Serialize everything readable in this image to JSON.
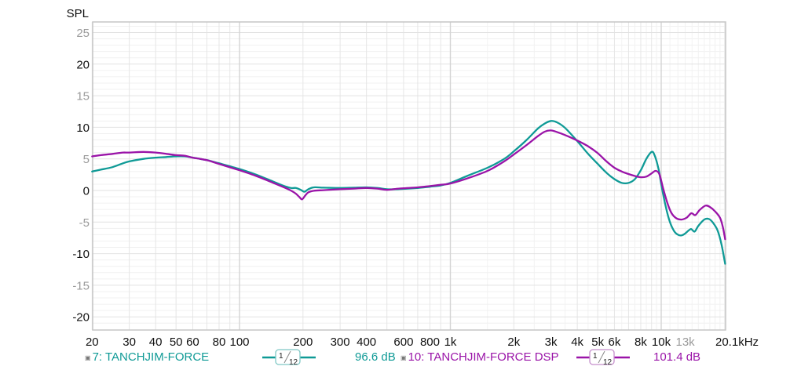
{
  "chart_data": {
    "type": "line",
    "title": "",
    "ylabel": "SPL",
    "xlabel": "Hz",
    "xscale": "log",
    "xlim": [
      20,
      20100
    ],
    "ylim": [
      -22,
      26.5
    ],
    "grid": true,
    "y_ticks": [
      {
        "value": 25,
        "label": "25",
        "emphasis": false
      },
      {
        "value": 20,
        "label": "20",
        "emphasis": true
      },
      {
        "value": 15,
        "label": "15",
        "emphasis": false
      },
      {
        "value": 10,
        "label": "10",
        "emphasis": true
      },
      {
        "value": 5,
        "label": "5",
        "emphasis": false
      },
      {
        "value": 0,
        "label": "0",
        "emphasis": true
      },
      {
        "value": -5,
        "label": "-5",
        "emphasis": false
      },
      {
        "value": -10,
        "label": "-10",
        "emphasis": true
      },
      {
        "value": -15,
        "label": "-15",
        "emphasis": false
      },
      {
        "value": -20,
        "label": "-20",
        "emphasis": true
      }
    ],
    "x_ticks": [
      {
        "value": 20,
        "label": "20",
        "emphasis": true
      },
      {
        "value": 30,
        "label": "30",
        "emphasis": true
      },
      {
        "value": 40,
        "label": "40",
        "emphasis": true
      },
      {
        "value": 50,
        "label": "50",
        "emphasis": true
      },
      {
        "value": 60,
        "label": "60",
        "emphasis": true
      },
      {
        "value": 80,
        "label": "80",
        "emphasis": true
      },
      {
        "value": 100,
        "label": "100",
        "emphasis": true
      },
      {
        "value": 200,
        "label": "200",
        "emphasis": true
      },
      {
        "value": 300,
        "label": "300",
        "emphasis": true
      },
      {
        "value": 400,
        "label": "400",
        "emphasis": true
      },
      {
        "value": 600,
        "label": "600",
        "emphasis": true
      },
      {
        "value": 800,
        "label": "800",
        "emphasis": true
      },
      {
        "value": 1000,
        "label": "1k",
        "emphasis": true
      },
      {
        "value": 2000,
        "label": "2k",
        "emphasis": true
      },
      {
        "value": 3000,
        "label": "3k",
        "emphasis": true
      },
      {
        "value": 4000,
        "label": "4k",
        "emphasis": true
      },
      {
        "value": 5000,
        "label": "5k",
        "emphasis": true
      },
      {
        "value": 6000,
        "label": "6k",
        "emphasis": true
      },
      {
        "value": 8000,
        "label": "8k",
        "emphasis": true
      },
      {
        "value": 10000,
        "label": "10k",
        "emphasis": true
      },
      {
        "value": 13000,
        "label": "13k",
        "emphasis": false
      },
      {
        "value": 20100,
        "label": "20.1kHz",
        "emphasis": true
      }
    ],
    "series": [
      {
        "name": "7: TANCHJIM-FORCE",
        "color": "#0f9a96",
        "smoothing": "1/12",
        "level": "96.6 dB",
        "points": [
          [
            20,
            3.0
          ],
          [
            22,
            3.3
          ],
          [
            25,
            3.7
          ],
          [
            28,
            4.3
          ],
          [
            30,
            4.6
          ],
          [
            35,
            5.0
          ],
          [
            40,
            5.2
          ],
          [
            45,
            5.3
          ],
          [
            50,
            5.4
          ],
          [
            55,
            5.4
          ],
          [
            60,
            5.2
          ],
          [
            70,
            4.8
          ],
          [
            80,
            4.3
          ],
          [
            100,
            3.4
          ],
          [
            120,
            2.5
          ],
          [
            140,
            1.6
          ],
          [
            160,
            0.8
          ],
          [
            175,
            0.4
          ],
          [
            185,
            0.4
          ],
          [
            195,
            0.1
          ],
          [
            203,
            -0.2
          ],
          [
            212,
            0.2
          ],
          [
            225,
            0.5
          ],
          [
            250,
            0.45
          ],
          [
            300,
            0.4
          ],
          [
            350,
            0.45
          ],
          [
            400,
            0.5
          ],
          [
            450,
            0.4
          ],
          [
            500,
            0.2
          ],
          [
            550,
            0.2
          ],
          [
            600,
            0.25
          ],
          [
            700,
            0.4
          ],
          [
            800,
            0.6
          ],
          [
            900,
            0.8
          ],
          [
            1000,
            1.2
          ],
          [
            1200,
            2.3
          ],
          [
            1500,
            3.6
          ],
          [
            1800,
            5.0
          ],
          [
            2000,
            6.2
          ],
          [
            2300,
            8.0
          ],
          [
            2600,
            9.8
          ],
          [
            2800,
            10.6
          ],
          [
            3000,
            11.0
          ],
          [
            3200,
            10.8
          ],
          [
            3500,
            9.9
          ],
          [
            4000,
            7.8
          ],
          [
            4500,
            5.8
          ],
          [
            5000,
            4.2
          ],
          [
            5500,
            2.8
          ],
          [
            6000,
            1.8
          ],
          [
            6500,
            1.2
          ],
          [
            7000,
            1.2
          ],
          [
            7500,
            1.8
          ],
          [
            8000,
            3.2
          ],
          [
            8500,
            5.0
          ],
          [
            9000,
            6.1
          ],
          [
            9300,
            5.6
          ],
          [
            9700,
            3.5
          ],
          [
            10000,
            1.0
          ],
          [
            10500,
            -2.5
          ],
          [
            11000,
            -5.0
          ],
          [
            11500,
            -6.4
          ],
          [
            12000,
            -7.0
          ],
          [
            12500,
            -7.1
          ],
          [
            13000,
            -6.8
          ],
          [
            13800,
            -6.1
          ],
          [
            14400,
            -6.5
          ],
          [
            15000,
            -5.6
          ],
          [
            16000,
            -4.6
          ],
          [
            16800,
            -4.5
          ],
          [
            17500,
            -5.0
          ],
          [
            18500,
            -6.3
          ],
          [
            19300,
            -8.5
          ],
          [
            20100,
            -11.6
          ]
        ]
      },
      {
        "name": "10: TANCHJIM-FORCE DSP",
        "color": "#9a14a8",
        "smoothing": "1/12",
        "level": "101.4 dB",
        "points": [
          [
            20,
            5.4
          ],
          [
            22,
            5.6
          ],
          [
            25,
            5.8
          ],
          [
            28,
            6.0
          ],
          [
            30,
            6.0
          ],
          [
            35,
            6.1
          ],
          [
            40,
            6.0
          ],
          [
            45,
            5.8
          ],
          [
            50,
            5.6
          ],
          [
            55,
            5.5
          ],
          [
            60,
            5.2
          ],
          [
            70,
            4.8
          ],
          [
            80,
            4.2
          ],
          [
            100,
            3.2
          ],
          [
            120,
            2.3
          ],
          [
            140,
            1.4
          ],
          [
            160,
            0.6
          ],
          [
            175,
            0.0
          ],
          [
            185,
            -0.5
          ],
          [
            193,
            -1.1
          ],
          [
            198,
            -1.4
          ],
          [
            205,
            -0.8
          ],
          [
            212,
            -0.3
          ],
          [
            225,
            -0.05
          ],
          [
            250,
            0.05
          ],
          [
            300,
            0.2
          ],
          [
            350,
            0.3
          ],
          [
            400,
            0.4
          ],
          [
            450,
            0.3
          ],
          [
            500,
            0.1
          ],
          [
            550,
            0.25
          ],
          [
            600,
            0.35
          ],
          [
            700,
            0.5
          ],
          [
            800,
            0.7
          ],
          [
            900,
            0.9
          ],
          [
            1000,
            1.1
          ],
          [
            1200,
            1.9
          ],
          [
            1500,
            3.1
          ],
          [
            1800,
            4.6
          ],
          [
            2000,
            5.7
          ],
          [
            2300,
            7.2
          ],
          [
            2600,
            8.6
          ],
          [
            2800,
            9.3
          ],
          [
            3000,
            9.5
          ],
          [
            3300,
            9.1
          ],
          [
            3600,
            8.6
          ],
          [
            4000,
            7.9
          ],
          [
            4500,
            7.0
          ],
          [
            5000,
            5.9
          ],
          [
            5500,
            4.6
          ],
          [
            6000,
            3.6
          ],
          [
            6500,
            3.0
          ],
          [
            7000,
            2.6
          ],
          [
            7500,
            2.3
          ],
          [
            8000,
            2.1
          ],
          [
            8500,
            2.2
          ],
          [
            9000,
            2.7
          ],
          [
            9400,
            3.1
          ],
          [
            9800,
            2.6
          ],
          [
            10200,
            0.4
          ],
          [
            10700,
            -2.0
          ],
          [
            11200,
            -3.6
          ],
          [
            11800,
            -4.4
          ],
          [
            12500,
            -4.6
          ],
          [
            13200,
            -4.3
          ],
          [
            13900,
            -3.6
          ],
          [
            14500,
            -3.9
          ],
          [
            15200,
            -3.1
          ],
          [
            16200,
            -2.4
          ],
          [
            17000,
            -2.6
          ],
          [
            18000,
            -3.3
          ],
          [
            19000,
            -4.3
          ],
          [
            19600,
            -5.8
          ],
          [
            20100,
            -7.7
          ]
        ]
      }
    ]
  },
  "legend": [
    {
      "label": "7: TANCHJIM-FORCE",
      "smoothing_num": "1",
      "smoothing_den": "12",
      "level": "96.6 dB",
      "color": "#0f9a96"
    },
    {
      "label": "10: TANCHJIM-FORCE DSP",
      "smoothing_num": "1",
      "smoothing_den": "12",
      "level": "101.4 dB",
      "color": "#9a14a8"
    }
  ],
  "icons": {
    "legend_marker": "▣"
  }
}
